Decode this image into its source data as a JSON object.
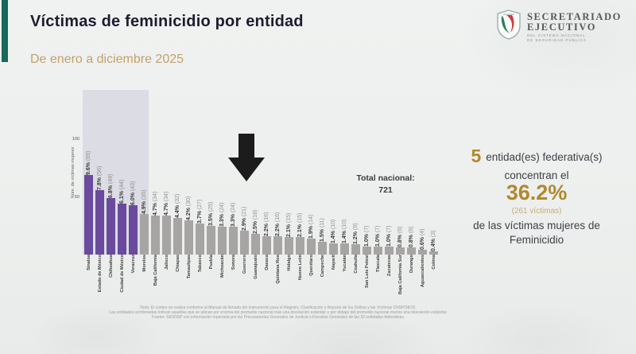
{
  "header": {
    "title": "Víctimas de feminicidio por entidad",
    "subtitle": "De enero a diciembre 2025",
    "logo": {
      "line1": "SECRETARIADO",
      "line2": "EJECUTIVO",
      "sub1": "DEL SISTEMA NACIONAL",
      "sub2": "DE SEGURIDAD PÚBLICA"
    }
  },
  "chart_data": {
    "type": "bar",
    "title": "",
    "xlabel": "",
    "ylabel": "Núm. de víctimas mujeres",
    "ylim": [
      0,
      105
    ],
    "yticks": [
      50,
      100
    ],
    "grid": false,
    "legend": "none",
    "highlighted_count": 5,
    "arrow_target": "Guerrero",
    "total_label": "Total nacional:",
    "total_value": "721",
    "categories": [
      "Sinaloa",
      "Estado de México",
      "Chihuahua",
      "Ciudad de México",
      "Veracruz",
      "Morelos",
      "Baja California",
      "Jalisco",
      "Chiapas",
      "Tamaulipas",
      "Tabasco",
      "Puebla",
      "Michoacán",
      "Sonora",
      "Guerrero",
      "Guanajuato",
      "Oaxaca",
      "Quintana Roo",
      "Hidalgo",
      "Nuevo León",
      "Querétaro",
      "Campeche",
      "Nayarit",
      "Yucatán",
      "Coahuila",
      "San Luis Potosí",
      "Tlaxcala",
      "Zacatecas",
      "Baja California Sur",
      "Durango",
      "Aguascalientes",
      "Colima"
    ],
    "values": [
      69,
      56,
      49,
      44,
      43,
      35,
      34,
      34,
      32,
      30,
      27,
      25,
      24,
      24,
      21,
      18,
      16,
      16,
      15,
      15,
      14,
      11,
      10,
      10,
      9,
      7,
      7,
      7,
      6,
      6,
      4,
      3
    ],
    "pct_labels": [
      "9.6%",
      "7.8%",
      "6.8%",
      "6.1%",
      "6.0%",
      "4.9%",
      "4.7%",
      "4.7%",
      "4.4%",
      "4.2%",
      "3.7%",
      "3.5%",
      "3.3%",
      "3.3%",
      "2.9%",
      "2.5%",
      "2.2%",
      "2.2%",
      "2.1%",
      "2.1%",
      "1.9%",
      "1.5%",
      "1.4%",
      "1.4%",
      "1.2%",
      "1.0%",
      "1.0%",
      "1.0%",
      "0.8%",
      "0.8%",
      "0.6%",
      "0.4%"
    ]
  },
  "callout": {
    "count": "5",
    "line1": "entidad(es)  federativa(s)",
    "line2": "concentran el",
    "pct": "36.2%",
    "victims": "(261  víctimas)",
    "line3": "de las  víctimas  mujeres de",
    "line4": "Feminicidio"
  },
  "footnote": {
    "line1": "Nota: El conteo se realiza conforme al Manual de llenado del Instrumento para el Registro, Clasificación y Reporte de los Delitos y las Víctimas CNSP/38/15.",
    "line2": "Las entidades sombreadas indican aquellas que se ubican por encima del promedio nacional más una desviación estándar o por debajo del promedio nacional menos una desviación estándar.",
    "line3": "Fuente: SESNSP con información reportada por las Procuradurías Generales de Justicia o Fiscalías Generales de las 32 entidades federativas."
  },
  "colors": {
    "accent_green": "#17695a",
    "bar_purple": "#6a4a9c",
    "bar_gray": "#a7a5a3",
    "highlight_band": "#dbdce4",
    "gold": "#b1892e",
    "tan": "#c6ab72",
    "arrow_black": "#1c1c1c"
  }
}
